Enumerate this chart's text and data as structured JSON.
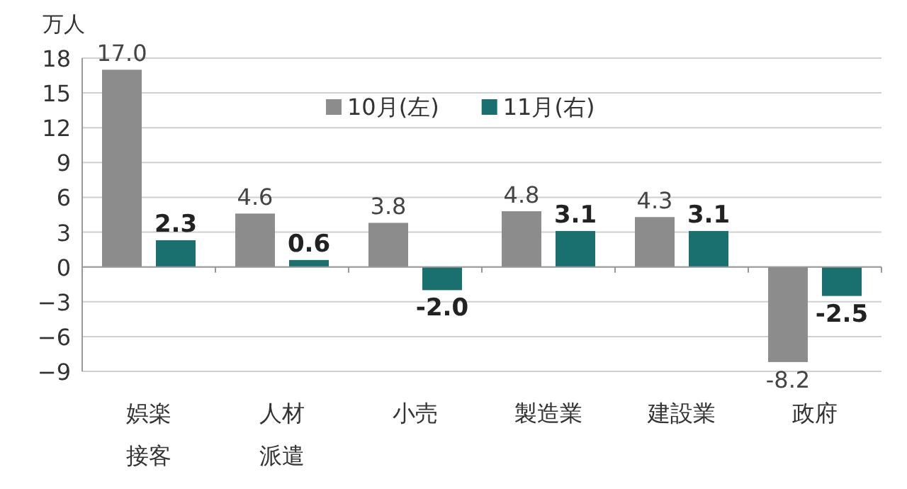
{
  "chart_data": {
    "type": "bar",
    "ylabel": "万人",
    "categories": [
      "娯楽接客",
      "人材派遣",
      "小売",
      "製造業",
      "建設業",
      "政府"
    ],
    "series": [
      {
        "name": "10月(左)",
        "color": "#8c8c8c",
        "values": [
          17.0,
          4.6,
          3.8,
          4.8,
          4.3,
          -8.2
        ],
        "value_labels": [
          "17.0",
          "4.6",
          "3.8",
          "4.8",
          "4.3",
          "-8.2"
        ]
      },
      {
        "name": "11月(右)",
        "color": "#19706f",
        "values": [
          2.3,
          0.6,
          -2.0,
          3.1,
          3.1,
          -2.5
        ],
        "value_labels": [
          "2.3",
          "0.6",
          "-2.0",
          "3.1",
          "3.1",
          "-2.5"
        ]
      }
    ],
    "ylim": [
      -9,
      18
    ],
    "yticks": [
      -9,
      -6,
      -3,
      0,
      3,
      6,
      9,
      12,
      15,
      18
    ],
    "grid": "y",
    "legend": "top"
  }
}
